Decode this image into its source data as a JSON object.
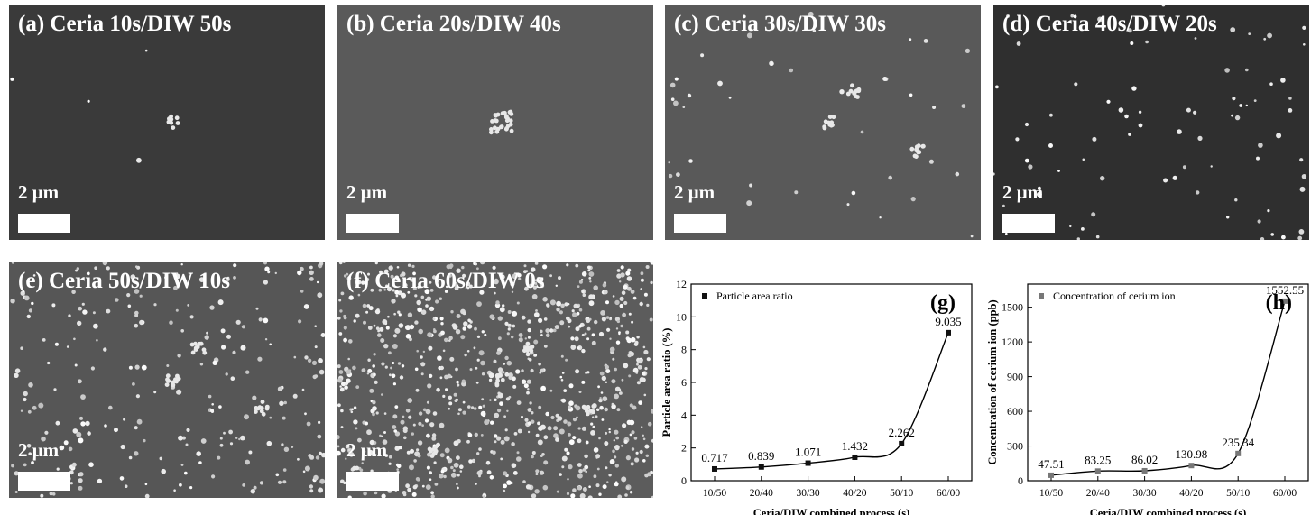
{
  "panels": [
    {
      "label": "(a) Ceria 10s/DIW 50s",
      "scale": "2 μm",
      "bg": "#3a3a3a",
      "particles": 4,
      "clusters": 1
    },
    {
      "label": "(b) Ceria 20s/DIW 40s",
      "scale": "2 μm",
      "bg": "#5a5a5a",
      "particles": 0,
      "clusters": 1
    },
    {
      "label": "(c) Ceria 30s/DIW 30s",
      "scale": "2 μm",
      "bg": "#595959",
      "particles": 40,
      "clusters": 3
    },
    {
      "label": "(d) Ceria 40s/DIW 20s",
      "scale": "2 μm",
      "bg": "#2f2f2f",
      "particles": 80,
      "clusters": 0
    },
    {
      "label": "(e) Ceria 50s/DIW 10s",
      "scale": "2 μm",
      "bg": "#565656",
      "particles": 260,
      "clusters": 3
    },
    {
      "label": "(f) Ceria 60s/DIW 0s",
      "scale": "2 μm",
      "bg": "#5c5c5c",
      "particles": 900,
      "clusters": 4
    }
  ],
  "chart_data": [
    {
      "type": "scatter",
      "panel_label": "(g)",
      "legend": "Particle area ratio",
      "xlabel": "Ceria/DIW combined process (s)",
      "ylabel": "Particle area ratio (%)",
      "categories": [
        "10/50",
        "20/40",
        "30/30",
        "40/20",
        "50/10",
        "60/00"
      ],
      "values": [
        0.717,
        0.839,
        1.071,
        1.432,
        2.262,
        9.035
      ],
      "data_labels": [
        "0.717",
        "0.839",
        "1.071",
        "1.432",
        "2.262",
        "9.035"
      ],
      "ylim": [
        0,
        12
      ],
      "yticks": [
        0,
        2,
        4,
        6,
        8,
        10,
        12
      ],
      "fit": "exponential",
      "fit_params": {
        "a": 0.8,
        "b": 1.2e-06,
        "r": 2.5
      },
      "marker_color": "#111111"
    },
    {
      "type": "scatter",
      "panel_label": "(h)",
      "legend": "Concentration of cerium ion",
      "xlabel": "Ceria/DIW combined process (s)",
      "ylabel": "Concentration of cerium ion (ppb)",
      "categories": [
        "10/50",
        "20/40",
        "30/30",
        "40/20",
        "50/10",
        "60/00"
      ],
      "values": [
        47.51,
        83.25,
        86.02,
        130.98,
        235.34,
        1552.55
      ],
      "data_labels": [
        "47.51",
        "83.25",
        "86.02",
        "130.98",
        "235.34",
        "1552.55"
      ],
      "ylim": [
        0,
        1700
      ],
      "yticks": [
        0,
        300,
        600,
        900,
        1200,
        1500
      ],
      "fit": "exponential",
      "fit_params": {
        "a": 60,
        "b": 9e-06,
        "r": 3.0
      },
      "marker_color": "#777777"
    }
  ]
}
